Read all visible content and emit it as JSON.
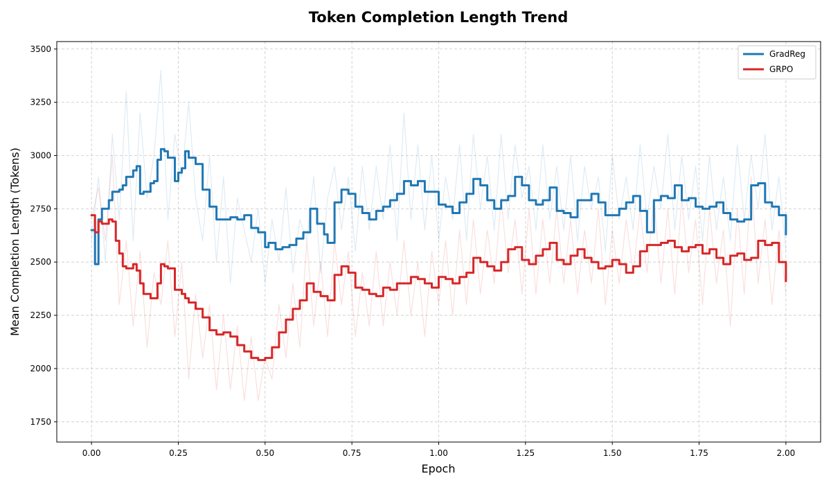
{
  "chart_data": {
    "type": "line",
    "title": "Token Completion Length Trend",
    "xlabel": "Epoch",
    "ylabel": "Mean Completion Length (Tokens)",
    "xlim": [
      -0.1,
      2.1
    ],
    "ylim": [
      1655,
      3535
    ],
    "x_ticks": [
      "0.00",
      "0.25",
      "0.50",
      "0.75",
      "1.00",
      "1.25",
      "1.50",
      "1.75",
      "2.00"
    ],
    "y_ticks": [
      "1750",
      "2000",
      "2250",
      "2500",
      "2750",
      "3000",
      "3250",
      "3500"
    ],
    "grid": true,
    "legend": "top-right",
    "colors": {
      "GradReg": "#1f77b4",
      "GRPO": "#d62728"
    },
    "series": [
      {
        "name": "GradReg",
        "style": "smoothed",
        "x": [
          0.0,
          0.01,
          0.02,
          0.03,
          0.05,
          0.06,
          0.08,
          0.09,
          0.1,
          0.12,
          0.13,
          0.14,
          0.15,
          0.17,
          0.18,
          0.19,
          0.2,
          0.21,
          0.22,
          0.24,
          0.25,
          0.26,
          0.27,
          0.28,
          0.3,
          0.32,
          0.34,
          0.36,
          0.38,
          0.4,
          0.42,
          0.44,
          0.46,
          0.48,
          0.5,
          0.51,
          0.53,
          0.55,
          0.57,
          0.59,
          0.61,
          0.63,
          0.65,
          0.67,
          0.68,
          0.7,
          0.72,
          0.74,
          0.76,
          0.78,
          0.8,
          0.82,
          0.84,
          0.86,
          0.88,
          0.9,
          0.92,
          0.94,
          0.96,
          0.98,
          1.0,
          1.02,
          1.04,
          1.06,
          1.08,
          1.1,
          1.12,
          1.14,
          1.16,
          1.18,
          1.2,
          1.22,
          1.24,
          1.26,
          1.28,
          1.3,
          1.32,
          1.34,
          1.36,
          1.38,
          1.4,
          1.42,
          1.44,
          1.46,
          1.48,
          1.5,
          1.52,
          1.54,
          1.56,
          1.58,
          1.6,
          1.62,
          1.64,
          1.66,
          1.68,
          1.7,
          1.72,
          1.74,
          1.76,
          1.78,
          1.8,
          1.82,
          1.84,
          1.86,
          1.88,
          1.9,
          1.92,
          1.94,
          1.96,
          1.98,
          2.0
        ],
        "values": [
          2650,
          2490,
          2700,
          2750,
          2790,
          2830,
          2840,
          2860,
          2900,
          2930,
          2950,
          2820,
          2830,
          2870,
          2880,
          2980,
          3030,
          3020,
          2990,
          2880,
          2920,
          2940,
          3020,
          2990,
          2960,
          2840,
          2760,
          2700,
          2700,
          2710,
          2700,
          2720,
          2660,
          2640,
          2570,
          2590,
          2560,
          2570,
          2580,
          2610,
          2640,
          2750,
          2680,
          2630,
          2590,
          2780,
          2840,
          2820,
          2760,
          2730,
          2700,
          2740,
          2760,
          2790,
          2820,
          2880,
          2860,
          2880,
          2830,
          2830,
          2770,
          2760,
          2730,
          2780,
          2820,
          2890,
          2860,
          2790,
          2750,
          2790,
          2810,
          2900,
          2860,
          2790,
          2770,
          2790,
          2850,
          2740,
          2730,
          2710,
          2790,
          2790,
          2820,
          2780,
          2720,
          2720,
          2750,
          2780,
          2810,
          2740,
          2640,
          2790,
          2810,
          2800,
          2860,
          2790,
          2800,
          2760,
          2750,
          2760,
          2780,
          2730,
          2700,
          2690,
          2700,
          2860,
          2870,
          2780,
          2760,
          2720,
          2630
        ]
      },
      {
        "name": "GRPO",
        "style": "smoothed",
        "x": [
          0.0,
          0.01,
          0.02,
          0.03,
          0.05,
          0.06,
          0.07,
          0.08,
          0.09,
          0.1,
          0.12,
          0.13,
          0.14,
          0.15,
          0.17,
          0.18,
          0.19,
          0.2,
          0.21,
          0.22,
          0.24,
          0.25,
          0.26,
          0.27,
          0.28,
          0.3,
          0.32,
          0.34,
          0.36,
          0.38,
          0.4,
          0.42,
          0.44,
          0.46,
          0.48,
          0.5,
          0.52,
          0.54,
          0.56,
          0.58,
          0.6,
          0.62,
          0.64,
          0.66,
          0.68,
          0.7,
          0.72,
          0.74,
          0.76,
          0.78,
          0.8,
          0.82,
          0.84,
          0.86,
          0.88,
          0.9,
          0.92,
          0.94,
          0.96,
          0.98,
          1.0,
          1.02,
          1.04,
          1.06,
          1.08,
          1.1,
          1.12,
          1.14,
          1.16,
          1.18,
          1.2,
          1.22,
          1.24,
          1.26,
          1.28,
          1.3,
          1.32,
          1.34,
          1.36,
          1.38,
          1.4,
          1.42,
          1.44,
          1.46,
          1.48,
          1.5,
          1.52,
          1.54,
          1.56,
          1.58,
          1.6,
          1.62,
          1.64,
          1.66,
          1.68,
          1.7,
          1.72,
          1.74,
          1.76,
          1.78,
          1.8,
          1.82,
          1.84,
          1.86,
          1.88,
          1.9,
          1.92,
          1.94,
          1.96,
          1.98,
          2.0
        ],
        "values": [
          2720,
          2640,
          2690,
          2680,
          2700,
          2690,
          2600,
          2540,
          2480,
          2470,
          2490,
          2460,
          2400,
          2350,
          2330,
          2330,
          2400,
          2490,
          2480,
          2470,
          2370,
          2370,
          2350,
          2330,
          2310,
          2280,
          2240,
          2180,
          2160,
          2170,
          2150,
          2110,
          2080,
          2050,
          2040,
          2050,
          2100,
          2170,
          2230,
          2280,
          2320,
          2400,
          2360,
          2340,
          2320,
          2440,
          2480,
          2450,
          2380,
          2370,
          2350,
          2340,
          2380,
          2370,
          2400,
          2400,
          2430,
          2420,
          2400,
          2380,
          2430,
          2420,
          2400,
          2430,
          2450,
          2520,
          2500,
          2480,
          2460,
          2500,
          2560,
          2570,
          2510,
          2490,
          2530,
          2560,
          2590,
          2510,
          2490,
          2530,
          2560,
          2520,
          2500,
          2470,
          2480,
          2510,
          2490,
          2450,
          2480,
          2550,
          2580,
          2580,
          2590,
          2600,
          2570,
          2550,
          2570,
          2580,
          2540,
          2560,
          2520,
          2490,
          2530,
          2540,
          2510,
          2520,
          2600,
          2580,
          2590,
          2500,
          2410
        ]
      },
      {
        "name": "GradReg",
        "style": "raw",
        "x": [
          0.0,
          0.02,
          0.04,
          0.06,
          0.08,
          0.1,
          0.12,
          0.14,
          0.16,
          0.18,
          0.2,
          0.22,
          0.24,
          0.26,
          0.28,
          0.3,
          0.32,
          0.34,
          0.36,
          0.38,
          0.4,
          0.42,
          0.44,
          0.46,
          0.48,
          0.5,
          0.52,
          0.54,
          0.56,
          0.58,
          0.6,
          0.62,
          0.64,
          0.66,
          0.68,
          0.7,
          0.72,
          0.74,
          0.76,
          0.78,
          0.8,
          0.82,
          0.84,
          0.86,
          0.88,
          0.9,
          0.92,
          0.94,
          0.96,
          0.98,
          1.0,
          1.02,
          1.04,
          1.06,
          1.08,
          1.1,
          1.12,
          1.14,
          1.16,
          1.18,
          1.2,
          1.22,
          1.24,
          1.26,
          1.28,
          1.3,
          1.32,
          1.34,
          1.36,
          1.38,
          1.4,
          1.42,
          1.44,
          1.46,
          1.48,
          1.5,
          1.52,
          1.54,
          1.56,
          1.58,
          1.6,
          1.62,
          1.64,
          1.66,
          1.68,
          1.7,
          1.72,
          1.74,
          1.76,
          1.78,
          1.8,
          1.82,
          1.84,
          1.86,
          1.88,
          1.9,
          1.92,
          1.94,
          1.96,
          1.98,
          2.0
        ],
        "values": [
          2600,
          2900,
          2500,
          3100,
          2700,
          3300,
          2600,
          3200,
          2800,
          3000,
          3400,
          2700,
          3100,
          2900,
          3250,
          2800,
          2600,
          3000,
          2500,
          2900,
          2400,
          2800,
          2650,
          2500,
          2750,
          2400,
          2700,
          2500,
          2850,
          2450,
          2700,
          2600,
          2900,
          2450,
          2800,
          2950,
          2650,
          2900,
          2550,
          2950,
          2650,
          2950,
          2700,
          3050,
          2600,
          3200,
          2700,
          3050,
          2650,
          3000,
          2600,
          2900,
          2700,
          3050,
          2600,
          3100,
          2750,
          3000,
          2650,
          3100,
          2700,
          3050,
          2800,
          2950,
          2650,
          3050,
          2700,
          2950,
          2650,
          3000,
          2600,
          2950,
          2750,
          2900,
          2550,
          3000,
          2700,
          2900,
          2650,
          3050,
          2700,
          2950,
          2750,
          3100,
          2650,
          3000,
          2700,
          2950,
          2600,
          3000,
          2650,
          2900,
          2600,
          3050,
          2700,
          3000,
          2750,
          3100,
          2650,
          2900,
          2550
        ]
      },
      {
        "name": "GRPO",
        "style": "raw",
        "x": [
          0.0,
          0.02,
          0.04,
          0.06,
          0.08,
          0.1,
          0.12,
          0.14,
          0.16,
          0.18,
          0.2,
          0.22,
          0.24,
          0.26,
          0.28,
          0.3,
          0.32,
          0.34,
          0.36,
          0.38,
          0.4,
          0.42,
          0.44,
          0.46,
          0.48,
          0.5,
          0.52,
          0.54,
          0.56,
          0.58,
          0.6,
          0.62,
          0.64,
          0.66,
          0.68,
          0.7,
          0.72,
          0.74,
          0.76,
          0.78,
          0.8,
          0.82,
          0.84,
          0.86,
          0.88,
          0.9,
          0.92,
          0.94,
          0.96,
          0.98,
          1.0,
          1.02,
          1.04,
          1.06,
          1.08,
          1.1,
          1.12,
          1.14,
          1.16,
          1.18,
          1.2,
          1.22,
          1.24,
          1.26,
          1.28,
          1.3,
          1.32,
          1.34,
          1.36,
          1.38,
          1.4,
          1.42,
          1.44,
          1.46,
          1.48,
          1.5,
          1.52,
          1.54,
          1.56,
          1.58,
          1.6,
          1.62,
          1.64,
          1.66,
          1.68,
          1.7,
          1.72,
          1.74,
          1.76,
          1.78,
          1.8,
          1.82,
          1.84,
          1.86,
          1.88,
          1.9,
          1.92,
          1.94,
          1.96,
          1.98,
          2.0
        ],
        "values": [
          2700,
          2850,
          2600,
          3000,
          2300,
          2600,
          2200,
          2550,
          2100,
          2450,
          2300,
          2600,
          2150,
          2500,
          1950,
          2350,
          2050,
          2300,
          1900,
          2250,
          1900,
          2200,
          1850,
          2150,
          1850,
          2050,
          1950,
          2300,
          2050,
          2400,
          2100,
          2600,
          2200,
          2500,
          2150,
          2600,
          2300,
          2550,
          2150,
          2450,
          2200,
          2550,
          2200,
          2500,
          2250,
          2600,
          2250,
          2500,
          2150,
          2550,
          2300,
          2600,
          2250,
          2650,
          2300,
          2700,
          2350,
          2650,
          2400,
          2800,
          2450,
          2700,
          2350,
          2750,
          2350,
          2700,
          2400,
          2750,
          2400,
          2700,
          2350,
          2650,
          2400,
          2750,
          2300,
          2650,
          2400,
          2700,
          2450,
          2750,
          2450,
          2800,
          2400,
          2750,
          2350,
          2800,
          2450,
          2700,
          2300,
          2750,
          2400,
          2650,
          2200,
          2750,
          2350,
          2900,
          2400,
          2700,
          2300,
          2650,
          2350
        ]
      }
    ]
  }
}
